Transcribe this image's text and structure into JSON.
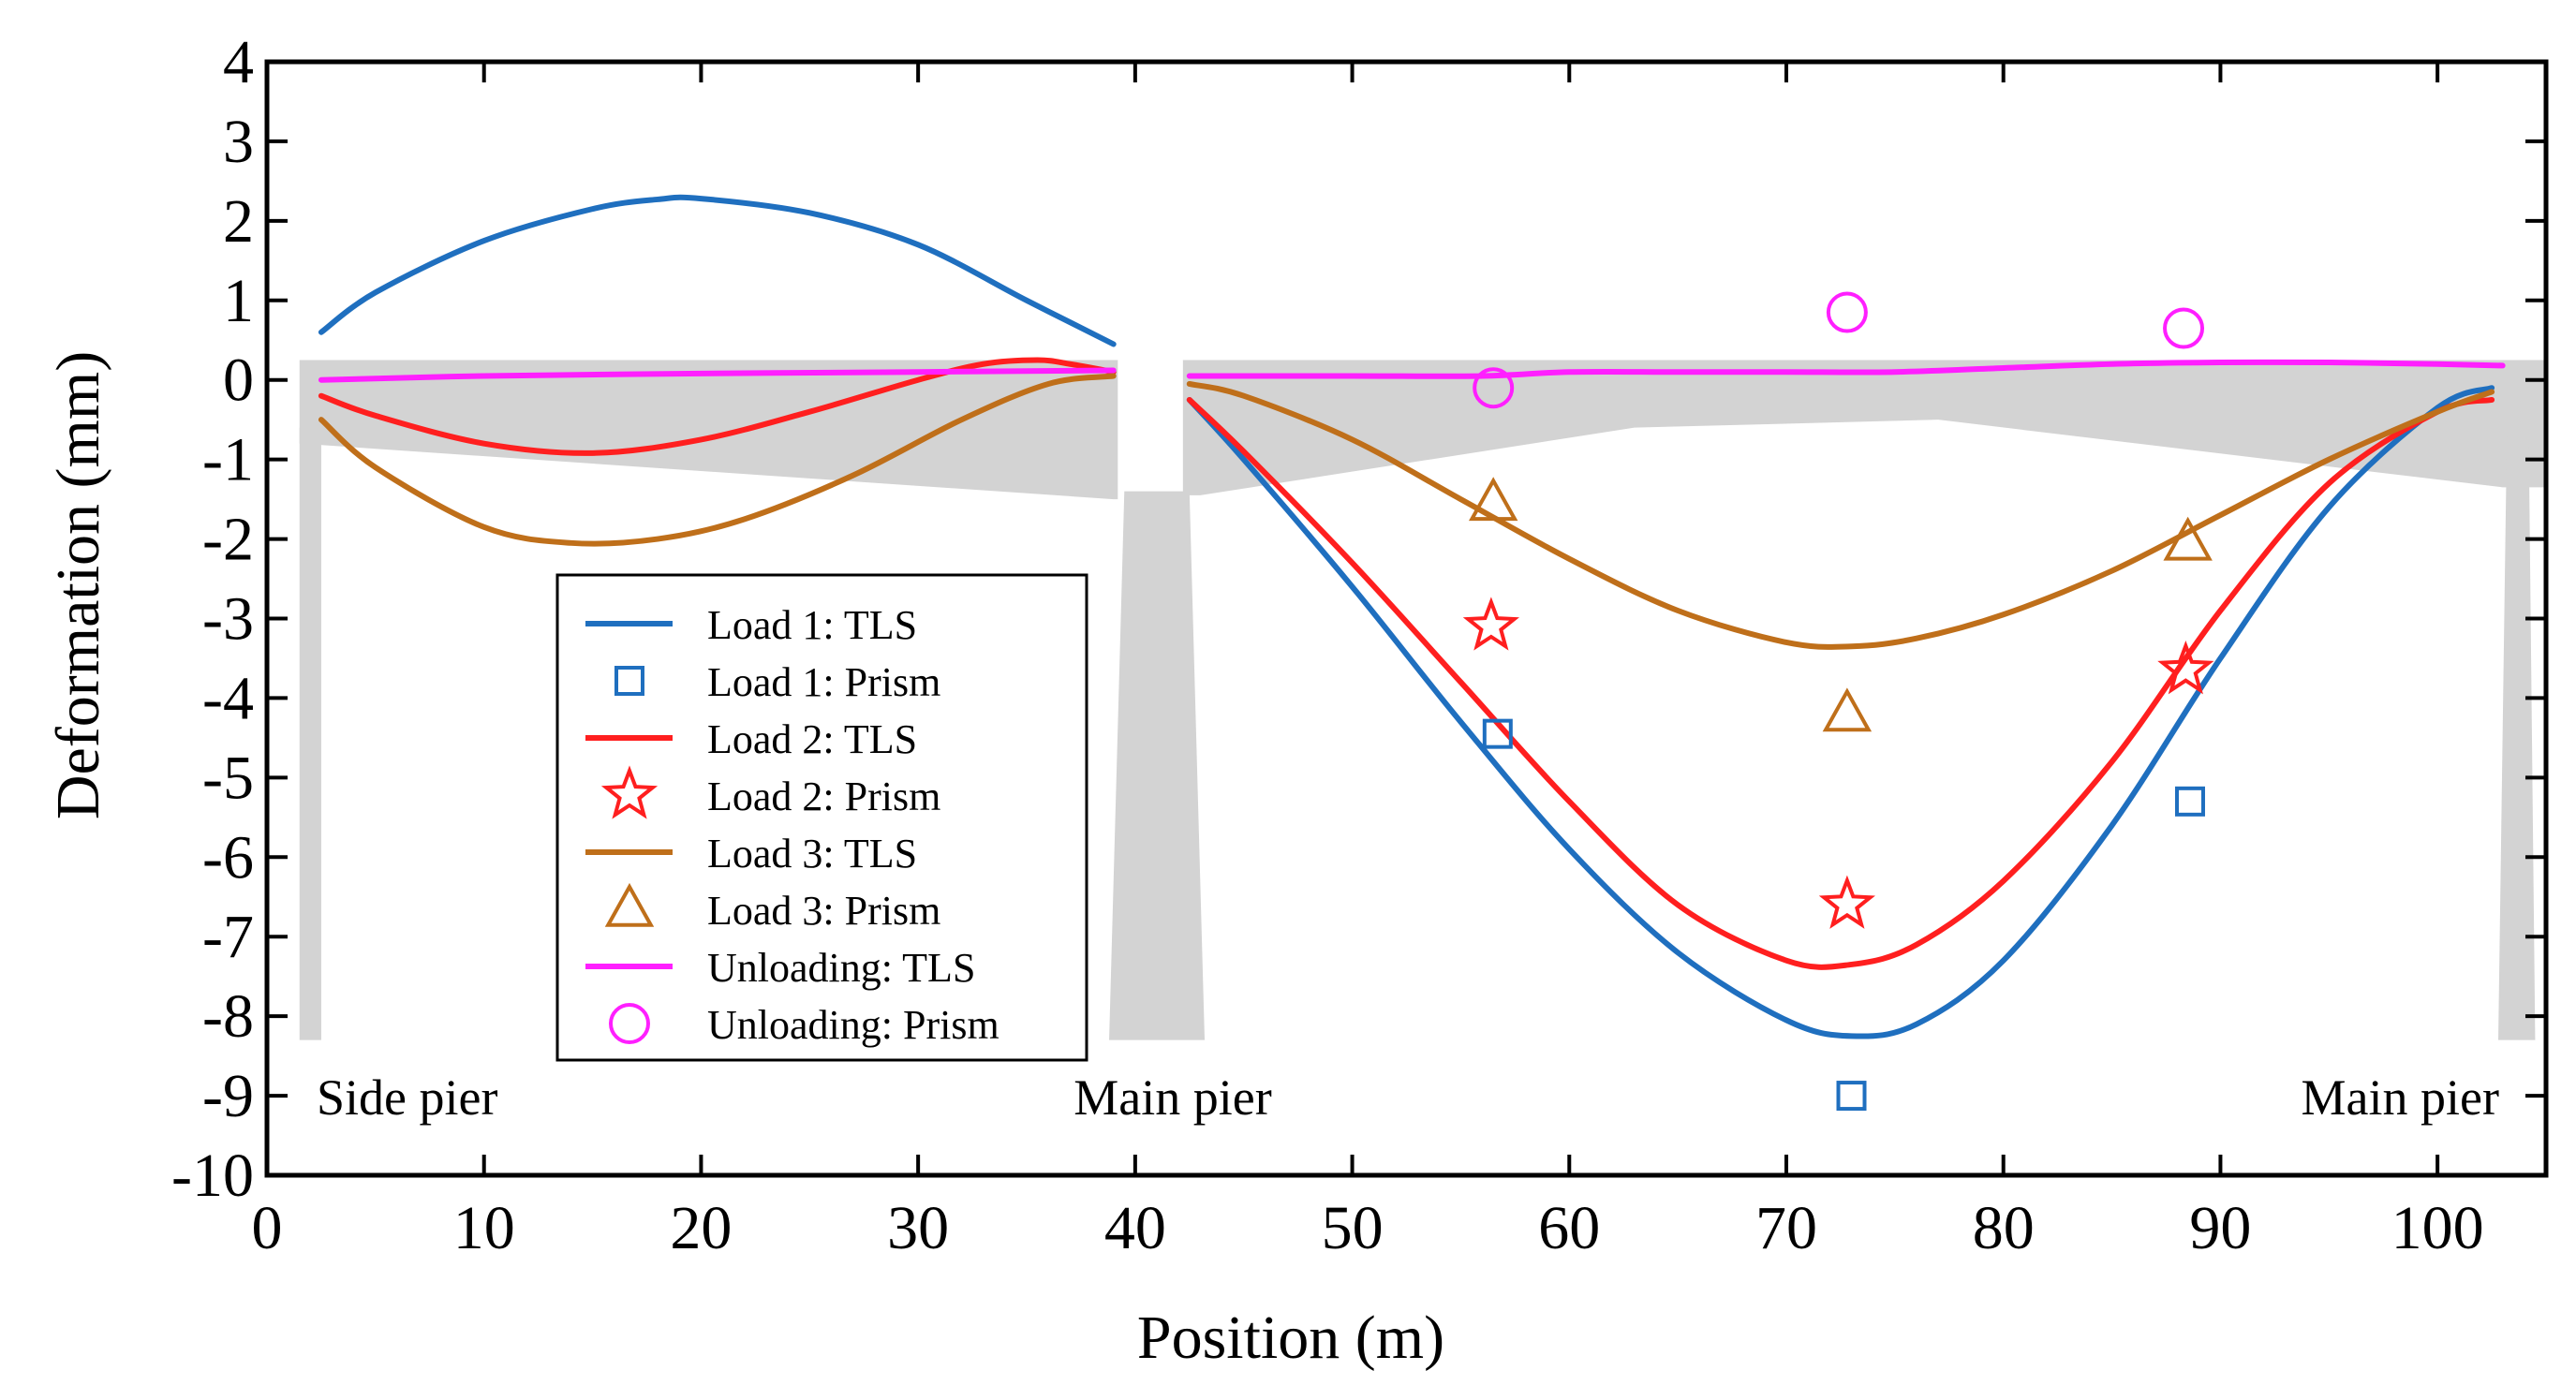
{
  "chart_data": {
    "type": "line",
    "title": "",
    "xlabel": "Position (m)",
    "ylabel": "Deformation (mm)",
    "xlim": [
      0,
      105
    ],
    "ylim": [
      -10,
      4
    ],
    "xticks": [
      0,
      10,
      20,
      30,
      40,
      50,
      60,
      70,
      80,
      90,
      100
    ],
    "yticks": [
      4,
      3,
      2,
      1,
      0,
      -1,
      -2,
      -3,
      -4,
      -5,
      -6,
      -7,
      -8,
      -9,
      -10
    ],
    "grid": false,
    "legend_position": "lower-left-center",
    "annotations": [
      {
        "text": "Side pier",
        "x": 1.5,
        "y": -9.25
      },
      {
        "text": "Main pier",
        "x": 41.5,
        "y": -9.25
      },
      {
        "text": "Main pier",
        "x": 98,
        "y": -9.25
      }
    ],
    "series": [
      {
        "name": "Load 1: TLS",
        "kind": "line",
        "color": "#1f6fbf",
        "x": [
          2.5,
          5,
          10,
          15,
          18,
          20,
          25,
          30,
          35,
          39
        ],
        "y": [
          0.6,
          1.1,
          1.75,
          2.15,
          2.27,
          2.28,
          2.1,
          1.7,
          1.0,
          0.45
        ]
      },
      {
        "name": "Load 1: TLS",
        "kind": "line",
        "color": "#1f6fbf",
        "hide_legend": true,
        "x": [
          42.5,
          45,
          50,
          55,
          60,
          65,
          70,
          73,
          76,
          80,
          85,
          90,
          95,
          100,
          102.5
        ],
        "y": [
          -0.25,
          -1.0,
          -2.6,
          -4.3,
          -5.9,
          -7.2,
          -8.05,
          -8.25,
          -8.1,
          -7.3,
          -5.6,
          -3.5,
          -1.6,
          -0.35,
          -0.1
        ]
      },
      {
        "name": "Load 1: Prism",
        "kind": "square",
        "color": "#1f6fbf",
        "x": [
          56.7,
          73,
          88.6
        ],
        "y": [
          -4.45,
          -9.0,
          -5.3
        ]
      },
      {
        "name": "Load 2: TLS",
        "kind": "line",
        "color": "#ff1f1f",
        "x": [
          2.5,
          5,
          10,
          15,
          20,
          25,
          30,
          33,
          35.5,
          37,
          39
        ],
        "y": [
          -0.2,
          -0.45,
          -0.8,
          -0.92,
          -0.75,
          -0.4,
          0.0,
          0.2,
          0.25,
          0.2,
          0.1
        ]
      },
      {
        "name": "Load 2: TLS",
        "kind": "line",
        "color": "#ff1f1f",
        "hide_legend": true,
        "x": [
          42.5,
          45,
          50,
          55,
          60,
          65,
          70,
          73,
          76,
          80,
          85,
          90,
          95,
          100,
          102.5
        ],
        "y": [
          -0.25,
          -0.9,
          -2.3,
          -3.8,
          -5.3,
          -6.6,
          -7.3,
          -7.35,
          -7.1,
          -6.3,
          -4.8,
          -2.9,
          -1.3,
          -0.4,
          -0.25
        ]
      },
      {
        "name": "Load 2: Prism",
        "kind": "star",
        "color": "#ff1f1f",
        "x": [
          56.4,
          72.8,
          88.4
        ],
        "y": [
          -3.1,
          -6.6,
          -3.65
        ]
      },
      {
        "name": "Load 3: TLS",
        "kind": "line",
        "color": "#bf6f1a",
        "x": [
          2.5,
          5,
          10,
          14,
          18,
          22,
          27,
          32,
          36,
          39
        ],
        "y": [
          -0.5,
          -1.1,
          -1.85,
          -2.05,
          -2.0,
          -1.75,
          -1.2,
          -0.5,
          -0.05,
          0.05
        ]
      },
      {
        "name": "Load 3: TLS",
        "kind": "line",
        "color": "#bf6f1a",
        "hide_legend": true,
        "x": [
          42.5,
          45,
          50,
          55,
          60,
          65,
          70,
          73,
          76,
          80,
          85,
          90,
          95,
          100,
          102.5
        ],
        "y": [
          -0.05,
          -0.2,
          -0.75,
          -1.5,
          -2.25,
          -2.9,
          -3.3,
          -3.35,
          -3.25,
          -2.95,
          -2.4,
          -1.7,
          -1.0,
          -0.4,
          -0.15
        ]
      },
      {
        "name": "Load 3: Prism",
        "kind": "triangle",
        "color": "#bf6f1a",
        "x": [
          56.5,
          72.8,
          88.5
        ],
        "y": [
          -1.55,
          -4.2,
          -2.05
        ]
      },
      {
        "name": "Unloading: TLS",
        "kind": "line",
        "color": "#ff1fff",
        "x": [
          2.5,
          10,
          20,
          30,
          39
        ],
        "y": [
          0.0,
          0.05,
          0.08,
          0.1,
          0.12
        ]
      },
      {
        "name": "Unloading: TLS",
        "kind": "line",
        "color": "#ff1fff",
        "hide_legend": true,
        "x": [
          42.5,
          50,
          56,
          60,
          65,
          70,
          75,
          80,
          85,
          90,
          95,
          100,
          103
        ],
        "y": [
          0.05,
          0.05,
          0.05,
          0.1,
          0.1,
          0.1,
          0.1,
          0.15,
          0.2,
          0.22,
          0.22,
          0.2,
          0.18
        ]
      },
      {
        "name": "Unloading: Prism",
        "kind": "circle",
        "color": "#ff1fff",
        "x": [
          56.5,
          72.8,
          88.3
        ],
        "y": [
          -0.1,
          0.85,
          0.65
        ]
      }
    ]
  },
  "background_shape": {
    "color": "#d3d3d3",
    "deck_top_y": 0.25,
    "deck_bottom": [
      [
        1.5,
        -0.8
      ],
      [
        39,
        -1.5
      ],
      [
        43,
        -1.45
      ],
      [
        63,
        -0.6
      ],
      [
        77,
        -0.5
      ],
      [
        103,
        -1.35
      ]
    ],
    "pillars": [
      {
        "x_top": [
          1.5,
          2.5
        ],
        "x_bottom": [
          1.5,
          2.5
        ]
      },
      {
        "x_top": [
          39.5,
          42.5
        ],
        "x_bottom": [
          38.8,
          43.2
        ]
      },
      {
        "x_top": [
          103.2,
          104.2
        ],
        "x_bottom": [
          102.8,
          104.5
        ]
      }
    ],
    "pillar_bottom_y": -8.3,
    "gap_x": [
      39.2,
      42.2
    ]
  }
}
